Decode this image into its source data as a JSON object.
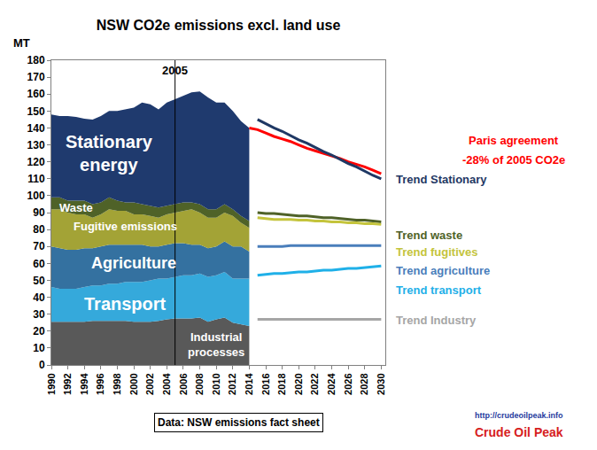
{
  "chart_data": {
    "type": "area",
    "title": "NSW CO2e emissions excl. land use",
    "ylabel": "MT",
    "stacked": true,
    "grid": false,
    "xlim": [
      1990,
      2030.5
    ],
    "xticks": [
      1990,
      1992,
      1994,
      1996,
      1998,
      2000,
      2002,
      2004,
      2006,
      2008,
      2010,
      2012,
      2014,
      2016,
      2018,
      2020,
      2022,
      2024,
      2026,
      2028,
      2030
    ],
    "ylim": [
      0,
      180
    ],
    "yticks": [
      0,
      10,
      20,
      30,
      40,
      50,
      60,
      70,
      80,
      90,
      100,
      110,
      120,
      130,
      140,
      150,
      160,
      170,
      180
    ],
    "x": [
      1990,
      1991,
      1992,
      1993,
      1994,
      1995,
      1996,
      1997,
      1998,
      1999,
      2000,
      2001,
      2002,
      2003,
      2004,
      2005,
      2006,
      2007,
      2008,
      2009,
      2010,
      2011,
      2012,
      2013,
      2014
    ],
    "series": [
      {
        "name": "Industrial processes",
        "type": "area",
        "color": "#595959",
        "label_x": 2010,
        "label_y": 12,
        "values": [
          25.5,
          25.5,
          25.5,
          25.5,
          25.5,
          26,
          26,
          26,
          26,
          26,
          25.5,
          25.5,
          25.5,
          26,
          27,
          27.5,
          27.5,
          27.5,
          28,
          25.5,
          27,
          28,
          25,
          24,
          23
        ]
      },
      {
        "name": "Transport",
        "type": "area",
        "color": "#35A9DB",
        "label_x": 1999,
        "label_y": 36,
        "values": [
          20.5,
          19.5,
          19.5,
          19.5,
          20.5,
          21,
          21,
          22,
          22,
          23,
          23.5,
          23.5,
          24.5,
          25,
          24,
          24.5,
          25.5,
          25.5,
          26,
          26.5,
          26,
          27,
          26,
          27,
          28
        ]
      },
      {
        "name": "Agriculture",
        "type": "area",
        "color": "#3471A0",
        "label_x": 2000,
        "label_y": 60,
        "values": [
          24,
          24,
          23,
          23,
          23,
          22,
          23,
          23,
          23,
          22,
          22,
          22,
          20,
          19,
          20,
          20,
          19,
          18,
          17,
          17,
          17,
          18,
          19,
          19,
          16
        ]
      },
      {
        "name": "Fugitive emissions",
        "type": "area",
        "color": "#A3A336",
        "label_x": 1999,
        "label_y": 82,
        "values": [
          22,
          23,
          22,
          21,
          20,
          18,
          19,
          21,
          20,
          20,
          18,
          18,
          18,
          17,
          18,
          18,
          19,
          21,
          19,
          18,
          17,
          17,
          18,
          14,
          14
        ]
      },
      {
        "name": "Waste",
        "type": "area",
        "color": "#4F6228",
        "label_x": 1993,
        "label_y": 93,
        "values": [
          7,
          7,
          7,
          8,
          8,
          8,
          7,
          7,
          6,
          5,
          7,
          6,
          6,
          6,
          5,
          5,
          5,
          4,
          5,
          5,
          5,
          5,
          4,
          4,
          4
        ]
      },
      {
        "name": "Stationary energy",
        "type": "area",
        "color": "#1F3A6E",
        "label_x": 1997,
        "label_y": 125,
        "values": [
          49,
          48,
          50,
          49.5,
          48.5,
          50,
          51,
          51,
          53,
          55,
          56,
          60,
          60,
          58,
          61,
          62,
          63,
          65,
          66.5,
          66,
          63,
          60,
          58,
          56,
          55
        ]
      },
      {
        "name": "-28% of 2005 CO2e",
        "heading": "Paris agreement",
        "type": "line",
        "color": "#FF0000",
        "x": [
          2014,
          2015,
          2016,
          2017,
          2018,
          2019,
          2020,
          2021,
          2022,
          2023,
          2024,
          2025,
          2026,
          2027,
          2028,
          2029,
          2030
        ],
        "values": [
          140,
          139,
          137,
          135,
          133.5,
          132,
          130,
          128,
          126.5,
          125,
          123.5,
          122,
          120,
          118.5,
          117,
          115,
          113
        ]
      },
      {
        "name": "Trend Stationary",
        "type": "line",
        "color": "#1F3864",
        "x": [
          2015,
          2016,
          2017,
          2018,
          2019,
          2020,
          2021,
          2022,
          2023,
          2024,
          2025,
          2026,
          2027,
          2028,
          2029,
          2030
        ],
        "values": [
          145,
          142.5,
          140,
          138,
          135.5,
          133,
          131,
          128.5,
          126,
          124,
          121.5,
          119,
          117,
          114.5,
          112,
          110
        ]
      },
      {
        "name": "Trend waste",
        "type": "line",
        "color": "#4F6228",
        "x": [
          2015,
          2016,
          2017,
          2018,
          2019,
          2020,
          2021,
          2022,
          2023,
          2024,
          2025,
          2026,
          2027,
          2028,
          2029,
          2030
        ],
        "values": [
          90,
          89.5,
          89.5,
          89,
          88.5,
          88,
          88,
          87.5,
          87,
          87,
          86.5,
          86,
          85.5,
          85.5,
          85,
          84.5
        ]
      },
      {
        "name": "Trend fugitives",
        "type": "line",
        "color": "#C4C43C",
        "x": [
          2015,
          2016,
          2017,
          2018,
          2019,
          2020,
          2021,
          2022,
          2023,
          2024,
          2025,
          2026,
          2027,
          2028,
          2029,
          2030
        ],
        "values": [
          87,
          86.5,
          86,
          86,
          86,
          85.5,
          85.5,
          85,
          85,
          84.5,
          84.5,
          84,
          84,
          83.5,
          83.5,
          83
        ]
      },
      {
        "name": "Trend agriculture",
        "type": "line",
        "color": "#4A7EBB",
        "x": [
          2015,
          2016,
          2017,
          2018,
          2019,
          2020,
          2021,
          2022,
          2023,
          2024,
          2025,
          2026,
          2027,
          2028,
          2029,
          2030
        ],
        "values": [
          70,
          70,
          70,
          70,
          70.5,
          70.5,
          70.5,
          70.5,
          70.5,
          70.5,
          70.5,
          70.5,
          70.5,
          70.5,
          70.5,
          70.5
        ]
      },
      {
        "name": "Trend transport",
        "type": "line",
        "color": "#1FB0E8",
        "x": [
          2015,
          2016,
          2017,
          2018,
          2019,
          2020,
          2021,
          2022,
          2023,
          2024,
          2025,
          2026,
          2027,
          2028,
          2029,
          2030
        ],
        "values": [
          53,
          53.5,
          54,
          54,
          54.5,
          55,
          55,
          55.5,
          56,
          56,
          56.5,
          57,
          57,
          57.5,
          58,
          58.5
        ]
      },
      {
        "name": "Trend Industry",
        "type": "line",
        "color": "#A6A6A6",
        "x": [
          2015,
          2016,
          2017,
          2018,
          2019,
          2020,
          2021,
          2022,
          2023,
          2024,
          2025,
          2026,
          2027,
          2028,
          2029,
          2030
        ],
        "values": [
          27,
          27,
          27,
          27,
          27,
          27,
          27,
          27,
          27,
          27,
          27,
          27,
          27,
          27,
          27,
          27
        ]
      }
    ],
    "annotations": [
      {
        "text": "2005",
        "x": 2005
      }
    ],
    "note": "Data: NSW emissions fact sheet",
    "source_url": "http://crudeoilpeak.info",
    "source_name": "Crude Oil Peak"
  }
}
